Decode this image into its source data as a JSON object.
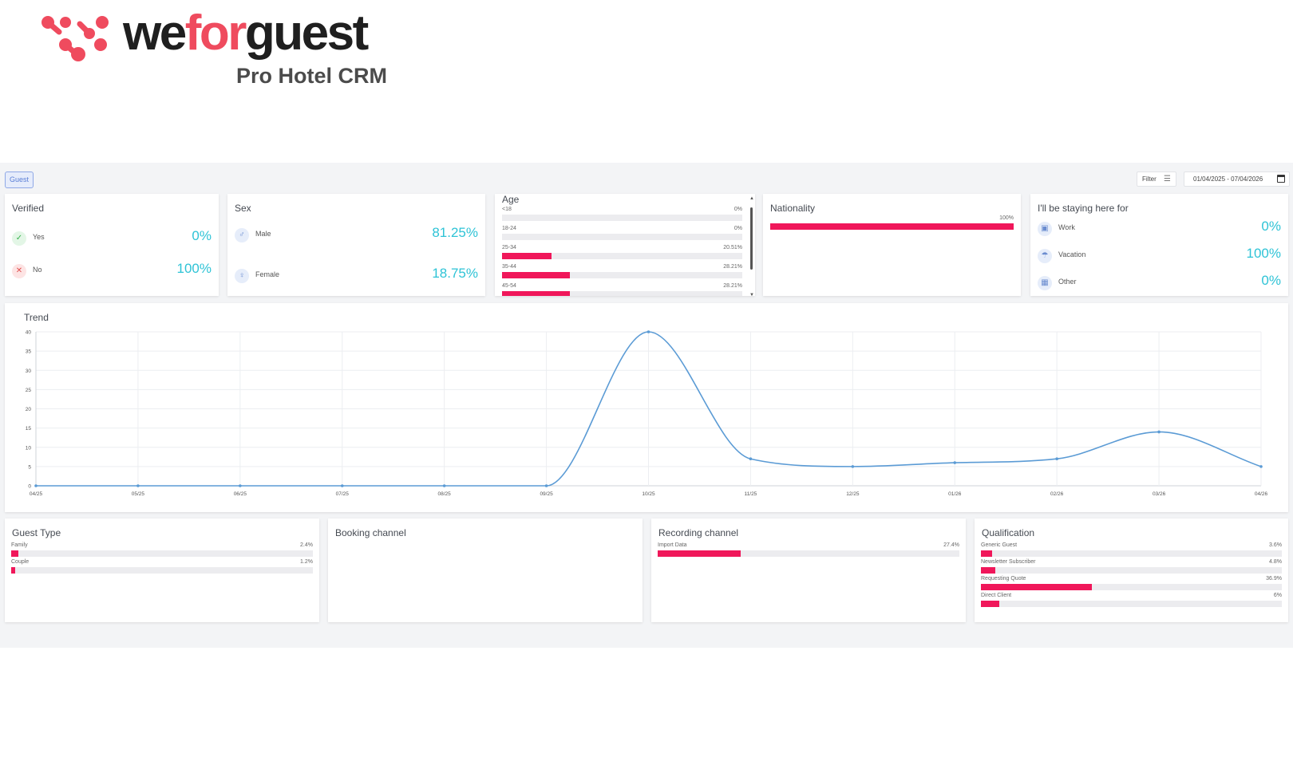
{
  "brand": {
    "name_part1": "we",
    "name_part2": "for",
    "name_part3": "guest",
    "subtitle": "Pro Hotel CRM",
    "accent_color": "#ef4b5e"
  },
  "toolbar": {
    "tab_label": "Guest",
    "filter_label": "Filter",
    "filter_icon": "sliders-icon",
    "date_range": "01/04/2025 - 07/04/2026",
    "calendar_icon": "calendar-icon"
  },
  "verified": {
    "title": "Verified",
    "items": [
      {
        "label": "Yes",
        "value": "0%",
        "icon": "check-icon"
      },
      {
        "label": "No",
        "value": "100%",
        "icon": "close-icon"
      }
    ]
  },
  "sex": {
    "title": "Sex",
    "items": [
      {
        "label": "Male",
        "value": "81.25%",
        "icon": "male-icon"
      },
      {
        "label": "Female",
        "value": "18.75%",
        "icon": "female-icon"
      }
    ]
  },
  "age": {
    "title": "Age",
    "items": [
      {
        "label": "<18",
        "pct": "0%",
        "value": 0
      },
      {
        "label": "18-24",
        "pct": "0%",
        "value": 0
      },
      {
        "label": "25-34",
        "pct": "20.51%",
        "value": 20.51
      },
      {
        "label": "35-44",
        "pct": "28.21%",
        "value": 28.21
      },
      {
        "label": "45-54",
        "pct": "28.21%",
        "value": 28.21
      }
    ]
  },
  "nationality": {
    "title": "Nationality",
    "items": [
      {
        "label": "",
        "pct": "100%",
        "value": 100
      }
    ]
  },
  "staying": {
    "title": "I'll be staying here for",
    "items": [
      {
        "label": "Work",
        "value": "0%",
        "icon": "briefcase-icon"
      },
      {
        "label": "Vacation",
        "value": "100%",
        "icon": "umbrella-icon"
      },
      {
        "label": "Other",
        "value": "0%",
        "icon": "calendar-icon"
      }
    ]
  },
  "trend": {
    "title": "Trend"
  },
  "chart_data": {
    "type": "line",
    "title": "Trend",
    "xlabel": "",
    "ylabel": "",
    "x": [
      "04/25",
      "05/25",
      "06/25",
      "07/25",
      "08/25",
      "09/25",
      "10/25",
      "11/25",
      "12/25",
      "01/26",
      "02/26",
      "03/26",
      "04/26"
    ],
    "series": [
      {
        "values": [
          0,
          0,
          0,
          0,
          0,
          0,
          40,
          7,
          5,
          6,
          7,
          14,
          5
        ]
      }
    ],
    "ylim": [
      0,
      40
    ],
    "yticks": [
      0,
      5,
      10,
      15,
      20,
      25,
      30,
      35,
      40
    ],
    "grid": true,
    "line_color": "#5b9bd5"
  },
  "guest_type": {
    "title": "Guest Type",
    "items": [
      {
        "label": "Family",
        "pct": "2.4%",
        "value": 2.4
      },
      {
        "label": "Couple",
        "pct": "1.2%",
        "value": 1.2
      }
    ]
  },
  "booking_channel": {
    "title": "Booking channel",
    "items": []
  },
  "recording_channel": {
    "title": "Recording channel",
    "items": [
      {
        "label": "Import Data",
        "pct": "27.4%",
        "value": 27.4
      }
    ]
  },
  "qualification": {
    "title": "Qualification",
    "items": [
      {
        "label": "Generic Guest",
        "pct": "3.6%",
        "value": 3.6
      },
      {
        "label": "Newsletter Subscriber",
        "pct": "4.8%",
        "value": 4.8
      },
      {
        "label": "Requesting Quote",
        "pct": "36.9%",
        "value": 36.9
      },
      {
        "label": "Direct Client",
        "pct": "6%",
        "value": 6
      }
    ]
  }
}
